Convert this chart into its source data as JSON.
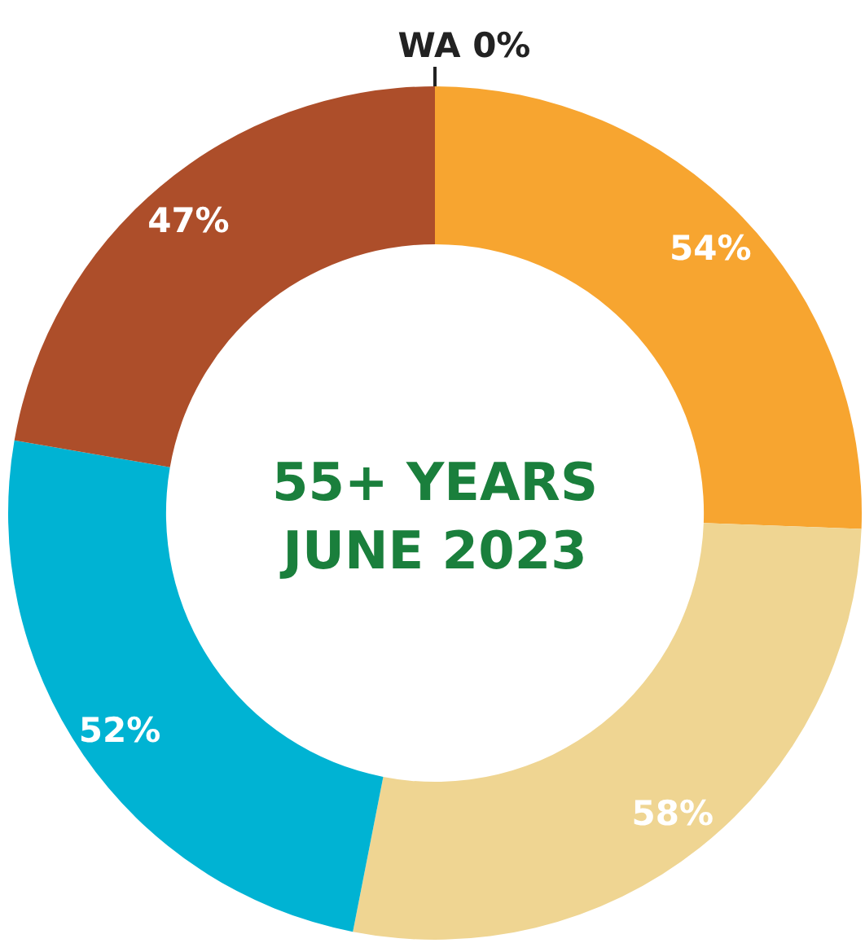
{
  "chart_data": {
    "type": "donut",
    "title": "55+ YEARS",
    "subtitle": "JUNE 2023",
    "categories": [
      "WA",
      null,
      null,
      null,
      null
    ],
    "values": [
      0,
      54,
      58,
      52,
      47
    ],
    "value_labels": [
      "0%",
      "54%",
      "58%",
      "52%",
      "47%"
    ],
    "colors": [
      "#222222",
      "#f7a530",
      "#efd592",
      "#00b3d3",
      "#ad4e2a"
    ]
  }
}
